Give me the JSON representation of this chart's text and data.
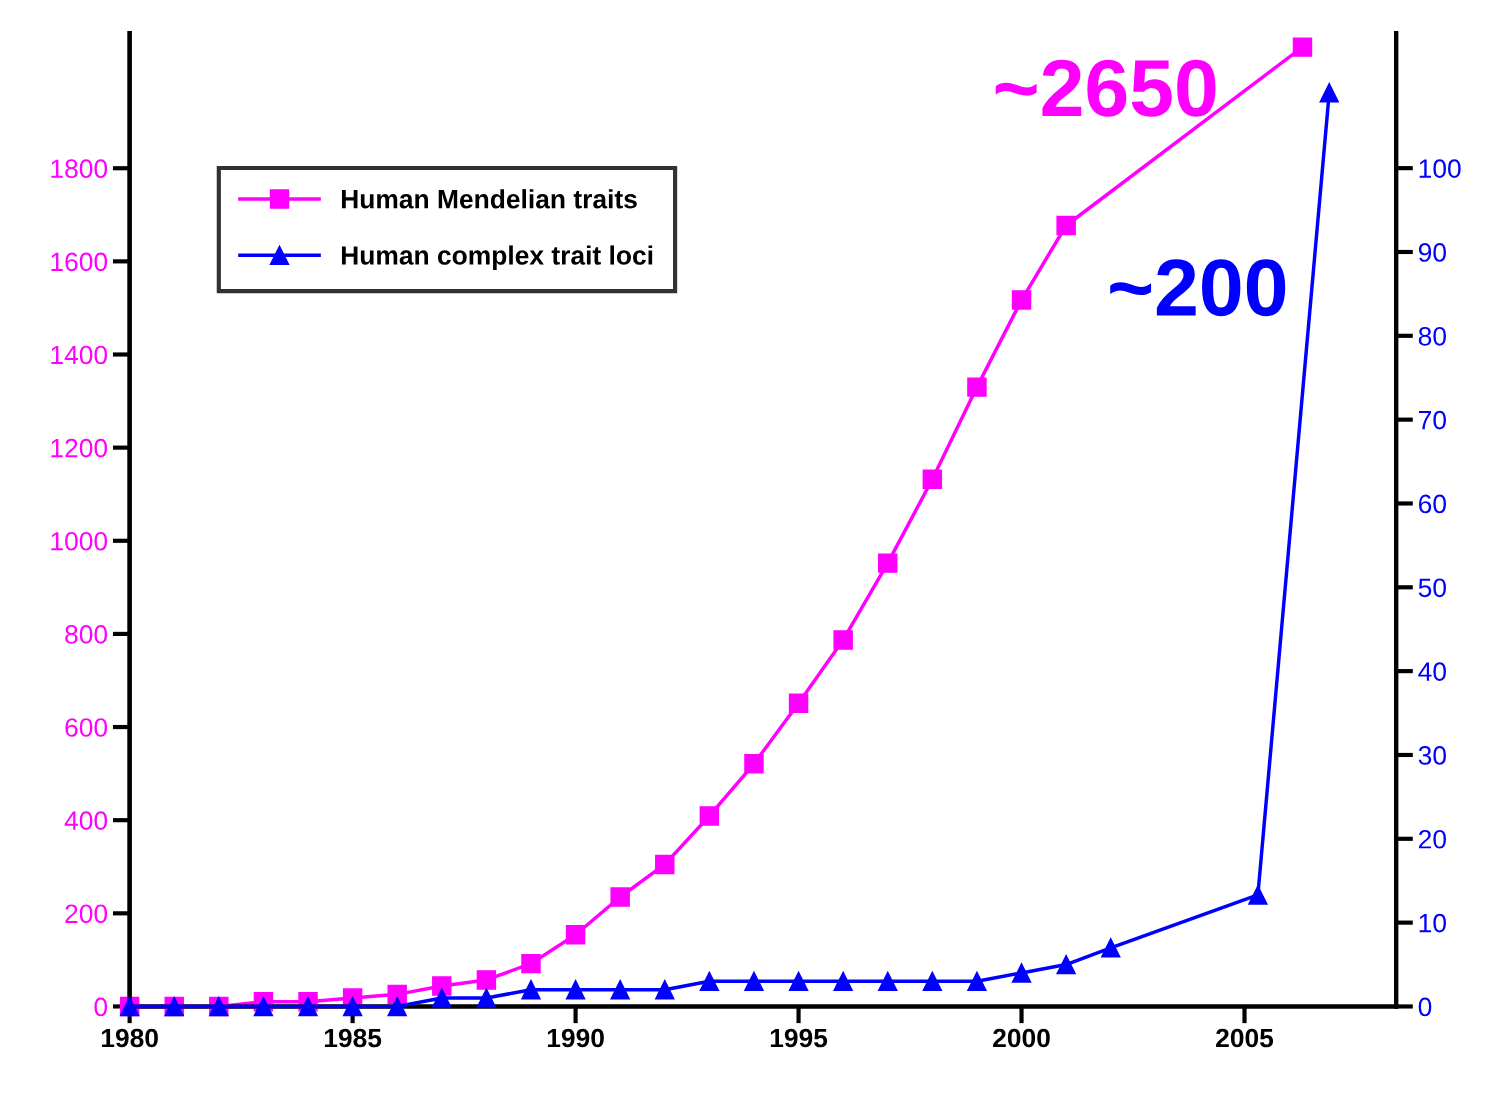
{
  "chart_data": {
    "type": "line",
    "x": [
      1980,
      1981,
      1982,
      1983,
      1984,
      1985,
      1986,
      1987,
      1988,
      1989,
      1990,
      1991,
      1992,
      1993,
      1994,
      1995,
      1996,
      1997,
      1998,
      1999,
      2000,
      2001,
      2006.3
    ],
    "series": [
      {
        "name": "Human Mendelian traits",
        "color": "#ff00ff",
        "marker": "square",
        "values": [
          0,
          0,
          0,
          10,
          10,
          18,
          26,
          44,
          57,
          92,
          154,
          235,
          305,
          409,
          521,
          651,
          787,
          952,
          1132,
          1330,
          1517,
          1677,
          2060
        ]
      },
      {
        "name": "Human complex trait loci",
        "color": "#0000ff",
        "marker": "triangle",
        "axis": "y2",
        "x": [
          1980,
          1981,
          1982,
          1983,
          1984,
          1985,
          1986,
          1987,
          1988,
          1989,
          1990,
          1991,
          1992,
          1993,
          1994,
          1995,
          1996,
          1997,
          1998,
          1999,
          2000,
          2001,
          2002,
          2005.3,
          2006.9
        ],
        "values": [
          0,
          0,
          0,
          0,
          0,
          0,
          0,
          1,
          1,
          2,
          2,
          2,
          2,
          3,
          3,
          3,
          3,
          3,
          3,
          3,
          4,
          5,
          7,
          13.3,
          109
        ]
      }
    ],
    "xlim": [
      1980,
      2008.4
    ],
    "xticks": [
      1980,
      1985,
      1990,
      1995,
      2000,
      2005
    ],
    "ylim": [
      0,
      2090
    ],
    "yticks": [
      0,
      200,
      400,
      600,
      800,
      1000,
      1200,
      1400,
      1600,
      1800
    ],
    "y2lim": [
      0,
      116.1
    ],
    "y2ticks": [
      0,
      10,
      20,
      30,
      40,
      50,
      60,
      70,
      80,
      90,
      100
    ],
    "annotations": [
      "~2650",
      "~200"
    ],
    "legend": "top left",
    "grid": false,
    "line_style": "solid"
  }
}
